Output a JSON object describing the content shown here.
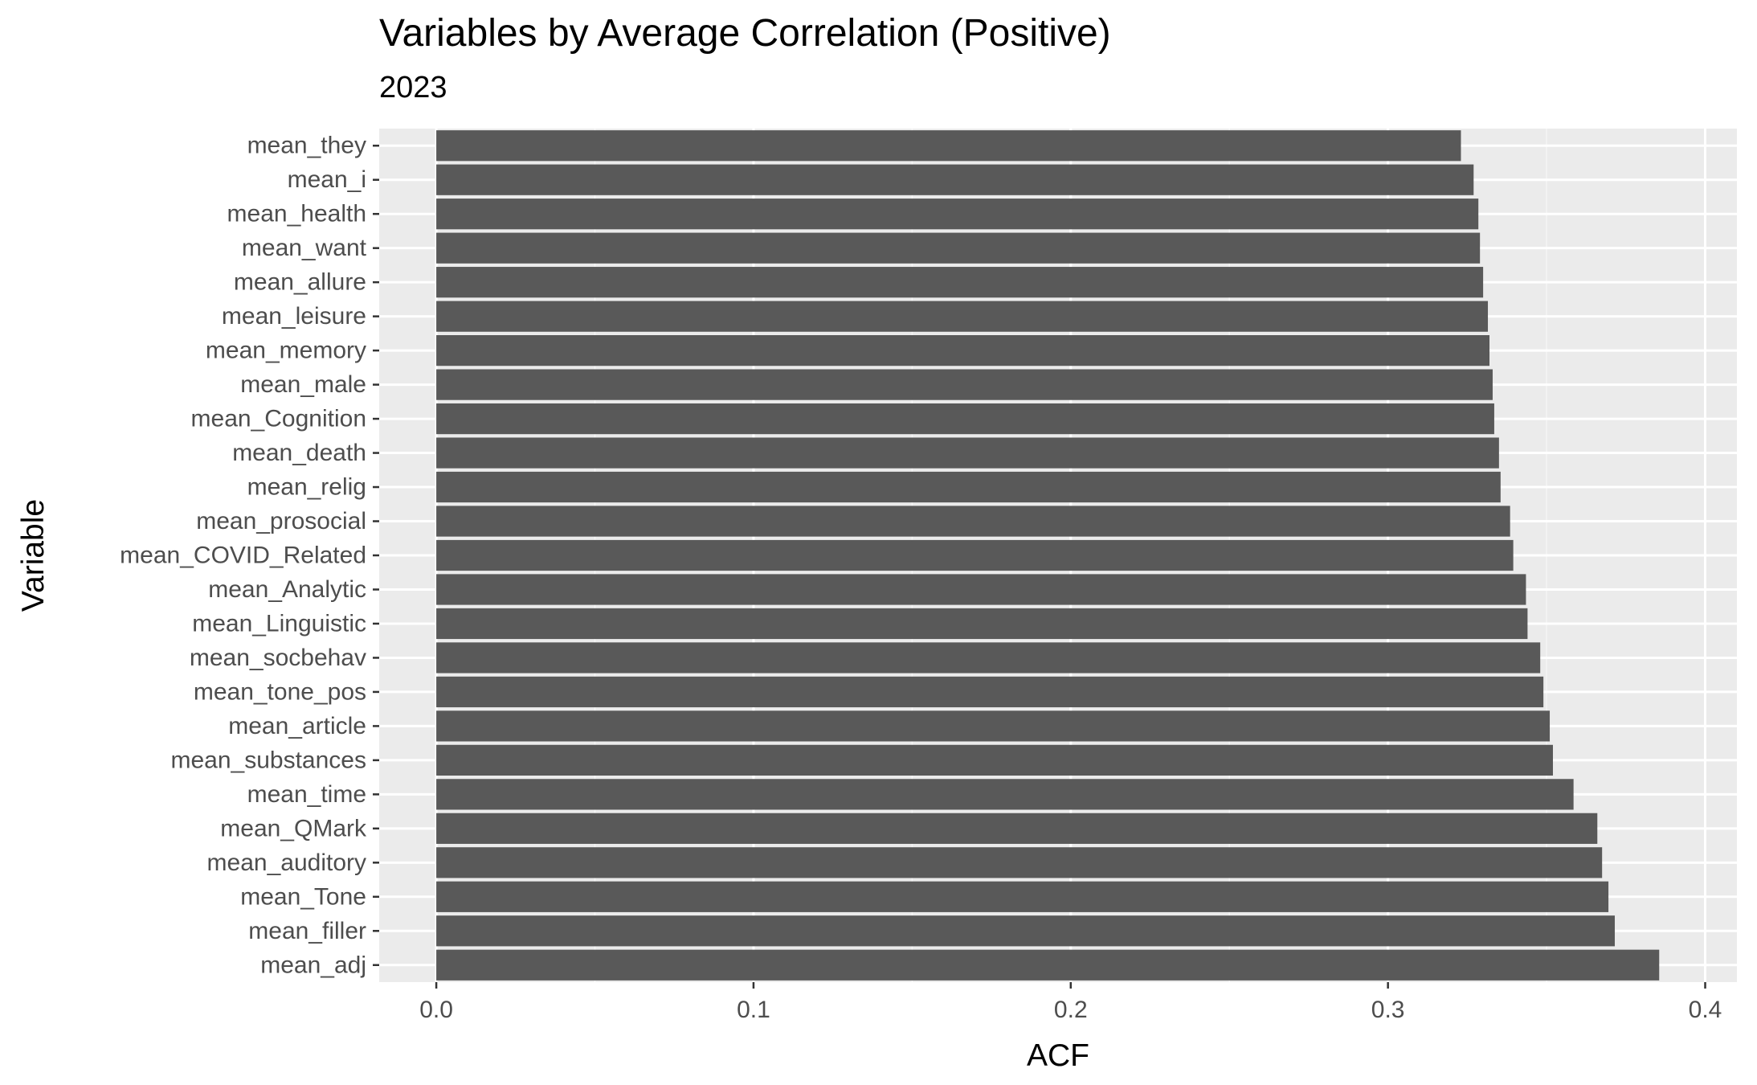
{
  "chart_data": {
    "type": "bar",
    "orientation": "horizontal",
    "title": "Variables by Average Correlation (Positive)",
    "subtitle": "2023",
    "xlabel": "ACF",
    "ylabel": "Variable",
    "xlim": [
      -0.018,
      0.41
    ],
    "xticks": [
      0.0,
      0.1,
      0.2,
      0.3,
      0.4
    ],
    "xtick_labels": [
      "0.0",
      "0.1",
      "0.2",
      "0.3",
      "0.4"
    ],
    "grid": true,
    "legend": "none",
    "categories": [
      "mean_they",
      "mean_i",
      "mean_health",
      "mean_want",
      "mean_allure",
      "mean_leisure",
      "mean_memory",
      "mean_male",
      "mean_Cognition",
      "mean_death",
      "mean_relig",
      "mean_prosocial",
      "mean_COVID_Related",
      "mean_Analytic",
      "mean_Linguistic",
      "mean_socbehav",
      "mean_tone_pos",
      "mean_article",
      "mean_substances",
      "mean_time",
      "mean_QMark",
      "mean_auditory",
      "mean_Tone",
      "mean_filler",
      "mean_adj"
    ],
    "values": [
      0.323,
      0.327,
      0.3285,
      0.329,
      0.33,
      0.3315,
      0.332,
      0.333,
      0.3335,
      0.335,
      0.3355,
      0.3385,
      0.3395,
      0.3435,
      0.344,
      0.348,
      0.349,
      0.351,
      0.352,
      0.3585,
      0.366,
      0.3675,
      0.3695,
      0.3715,
      0.3855
    ]
  },
  "colors": {
    "bar": "#595959",
    "panel_background": "#ebebeb",
    "grid_major": "#ffffff",
    "grid_minor": "#f5f5f5",
    "tick_text": "#4d4d4d",
    "tick_mark": "#333333"
  }
}
